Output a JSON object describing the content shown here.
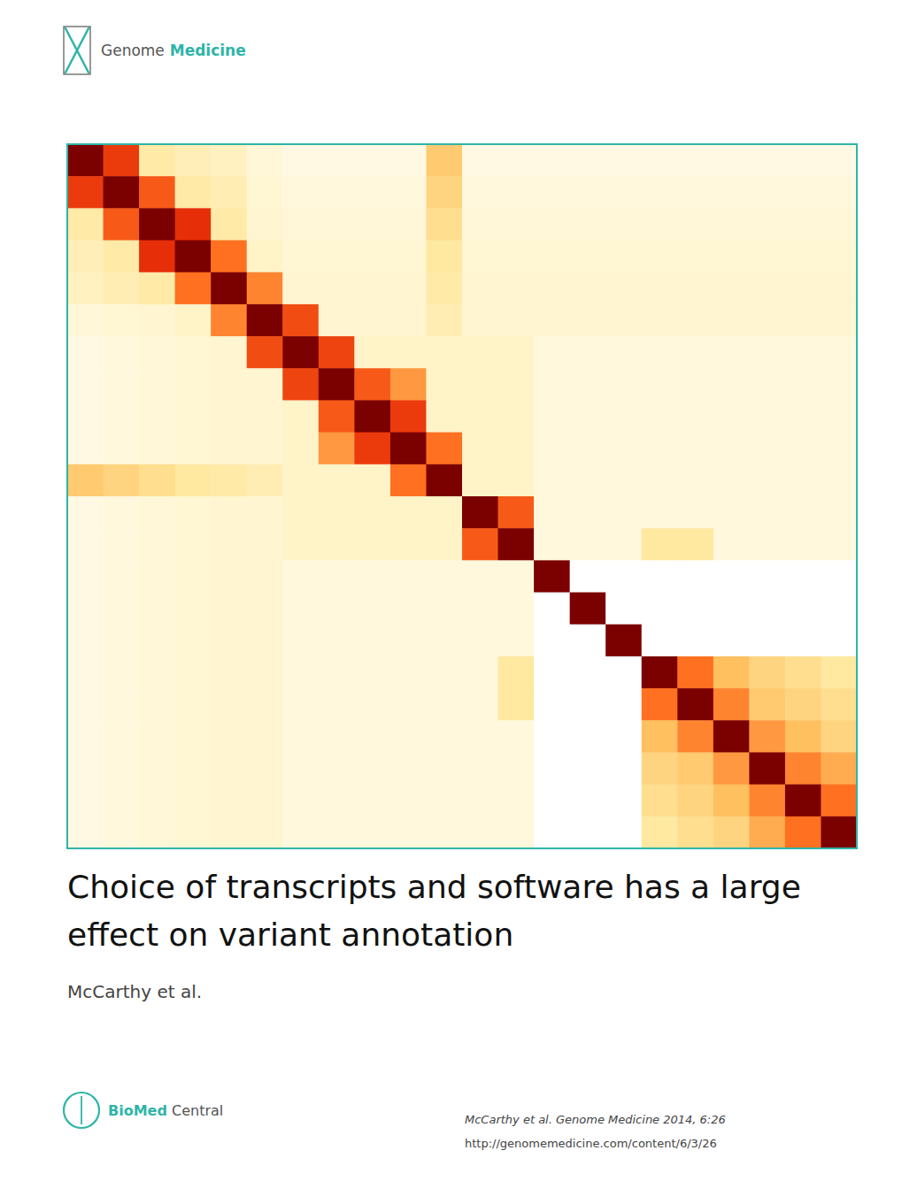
{
  "chart_data": {
    "type": "heatmap",
    "title": [
      "Choice of transcripts and software has a large",
      "effect on variant annotation"
    ],
    "annotations": [
      "McCarthy et al.",
      "McCarthy et al. Genome Medicine 2014, 6:26",
      "http://genomemedicine.com/content/6/3/26",
      "Genome Medicine",
      "BioMed Central"
    ],
    "values": [
      [
        1.0,
        0.72,
        0.18,
        0.14,
        0.12,
        0.06,
        0.04,
        0.04,
        0.04,
        0.04,
        0.35,
        0.04,
        0.04,
        0.04,
        0.04,
        0.04,
        0.04,
        0.04,
        0.04,
        0.04,
        0.04,
        0.04
      ],
      [
        0.72,
        1.0,
        0.65,
        0.18,
        0.15,
        0.07,
        0.05,
        0.05,
        0.05,
        0.05,
        0.3,
        0.05,
        0.05,
        0.05,
        0.05,
        0.05,
        0.05,
        0.05,
        0.05,
        0.05,
        0.05,
        0.05
      ],
      [
        0.18,
        0.65,
        1.0,
        0.75,
        0.18,
        0.08,
        0.06,
        0.06,
        0.06,
        0.06,
        0.25,
        0.06,
        0.06,
        0.06,
        0.06,
        0.06,
        0.06,
        0.06,
        0.06,
        0.06,
        0.06,
        0.06
      ],
      [
        0.14,
        0.18,
        0.75,
        1.0,
        0.6,
        0.1,
        0.07,
        0.07,
        0.07,
        0.07,
        0.2,
        0.07,
        0.07,
        0.07,
        0.07,
        0.07,
        0.07,
        0.07,
        0.07,
        0.07,
        0.07,
        0.07
      ],
      [
        0.12,
        0.15,
        0.18,
        0.6,
        1.0,
        0.55,
        0.08,
        0.08,
        0.08,
        0.08,
        0.18,
        0.08,
        0.08,
        0.08,
        0.08,
        0.08,
        0.08,
        0.08,
        0.08,
        0.08,
        0.08,
        0.08
      ],
      [
        0.06,
        0.07,
        0.08,
        0.1,
        0.55,
        1.0,
        0.68,
        0.08,
        0.08,
        0.08,
        0.15,
        0.08,
        0.08,
        0.08,
        0.08,
        0.08,
        0.08,
        0.08,
        0.08,
        0.08,
        0.08,
        0.08
      ],
      [
        0.04,
        0.05,
        0.06,
        0.07,
        0.08,
        0.68,
        1.0,
        0.7,
        0.1,
        0.1,
        0.1,
        0.1,
        0.1,
        0.05,
        0.05,
        0.05,
        0.05,
        0.05,
        0.05,
        0.05,
        0.05,
        0.05
      ],
      [
        0.04,
        0.05,
        0.06,
        0.07,
        0.08,
        0.08,
        0.7,
        1.0,
        0.65,
        0.5,
        0.1,
        0.1,
        0.1,
        0.05,
        0.05,
        0.05,
        0.05,
        0.05,
        0.05,
        0.05,
        0.05,
        0.05
      ],
      [
        0.04,
        0.05,
        0.06,
        0.07,
        0.08,
        0.08,
        0.1,
        0.65,
        1.0,
        0.72,
        0.1,
        0.1,
        0.1,
        0.05,
        0.05,
        0.05,
        0.05,
        0.05,
        0.05,
        0.05,
        0.05,
        0.05
      ],
      [
        0.04,
        0.05,
        0.06,
        0.07,
        0.08,
        0.08,
        0.1,
        0.5,
        0.72,
        1.0,
        0.6,
        0.1,
        0.1,
        0.05,
        0.05,
        0.05,
        0.05,
        0.05,
        0.05,
        0.05,
        0.05,
        0.05
      ],
      [
        0.35,
        0.3,
        0.25,
        0.2,
        0.18,
        0.15,
        0.1,
        0.1,
        0.1,
        0.6,
        1.0,
        0.1,
        0.1,
        0.05,
        0.05,
        0.05,
        0.05,
        0.05,
        0.05,
        0.05,
        0.05,
        0.05
      ],
      [
        0.04,
        0.05,
        0.06,
        0.07,
        0.08,
        0.08,
        0.1,
        0.1,
        0.1,
        0.1,
        0.1,
        1.0,
        0.65,
        0.05,
        0.05,
        0.05,
        0.05,
        0.05,
        0.05,
        0.05,
        0.05,
        0.05
      ],
      [
        0.04,
        0.05,
        0.06,
        0.07,
        0.08,
        0.08,
        0.1,
        0.1,
        0.1,
        0.1,
        0.1,
        0.65,
        1.0,
        0.05,
        0.05,
        0.05,
        0.2,
        0.2,
        0.05,
        0.05,
        0.05,
        0.05
      ],
      [
        0.04,
        0.05,
        0.06,
        0.07,
        0.08,
        0.08,
        0.05,
        0.05,
        0.05,
        0.05,
        0.05,
        0.05,
        0.05,
        1.0,
        0.0,
        0.0,
        0.0,
        0.0,
        0.0,
        0.0,
        0.0,
        0.0
      ],
      [
        0.04,
        0.05,
        0.06,
        0.07,
        0.08,
        0.08,
        0.05,
        0.05,
        0.05,
        0.05,
        0.05,
        0.05,
        0.05,
        0.0,
        1.0,
        0.0,
        0.0,
        0.0,
        0.0,
        0.0,
        0.0,
        0.0
      ],
      [
        0.04,
        0.05,
        0.06,
        0.07,
        0.08,
        0.08,
        0.05,
        0.05,
        0.05,
        0.05,
        0.05,
        0.05,
        0.05,
        0.0,
        0.0,
        1.0,
        0.0,
        0.0,
        0.0,
        0.0,
        0.0,
        0.0
      ],
      [
        0.04,
        0.05,
        0.06,
        0.07,
        0.08,
        0.08,
        0.05,
        0.05,
        0.05,
        0.05,
        0.05,
        0.05,
        0.2,
        0.0,
        0.0,
        0.0,
        1.0,
        0.6,
        0.4,
        0.3,
        0.25,
        0.2
      ],
      [
        0.04,
        0.05,
        0.06,
        0.07,
        0.08,
        0.08,
        0.05,
        0.05,
        0.05,
        0.05,
        0.05,
        0.05,
        0.2,
        0.0,
        0.0,
        0.0,
        0.6,
        1.0,
        0.55,
        0.35,
        0.3,
        0.25
      ],
      [
        0.04,
        0.05,
        0.06,
        0.07,
        0.08,
        0.08,
        0.05,
        0.05,
        0.05,
        0.05,
        0.05,
        0.05,
        0.05,
        0.0,
        0.0,
        0.0,
        0.4,
        0.55,
        1.0,
        0.5,
        0.4,
        0.3
      ],
      [
        0.04,
        0.05,
        0.06,
        0.07,
        0.08,
        0.08,
        0.05,
        0.05,
        0.05,
        0.05,
        0.05,
        0.05,
        0.05,
        0.0,
        0.0,
        0.0,
        0.3,
        0.35,
        0.5,
        1.0,
        0.55,
        0.45
      ],
      [
        0.04,
        0.05,
        0.06,
        0.07,
        0.08,
        0.08,
        0.05,
        0.05,
        0.05,
        0.05,
        0.05,
        0.05,
        0.05,
        0.0,
        0.0,
        0.0,
        0.25,
        0.3,
        0.4,
        0.55,
        1.0,
        0.6
      ],
      [
        0.04,
        0.05,
        0.06,
        0.07,
        0.08,
        0.08,
        0.05,
        0.05,
        0.05,
        0.05,
        0.05,
        0.05,
        0.05,
        0.0,
        0.0,
        0.0,
        0.2,
        0.25,
        0.3,
        0.45,
        0.6,
        1.0
      ]
    ],
    "zlim": [
      0.0,
      1.0
    ],
    "color_stops": [
      0.0,
      0.05,
      0.2,
      0.4,
      0.6,
      0.8,
      1.0
    ],
    "color_stop_colors": [
      "#FFFFFF",
      "#FFF8DC",
      "#FFE8A0",
      "#FFC060",
      "#FF7020",
      "#DD1800",
      "#7B0000"
    ],
    "color": "#2EB5A8",
    "tick_labels": false
  }
}
